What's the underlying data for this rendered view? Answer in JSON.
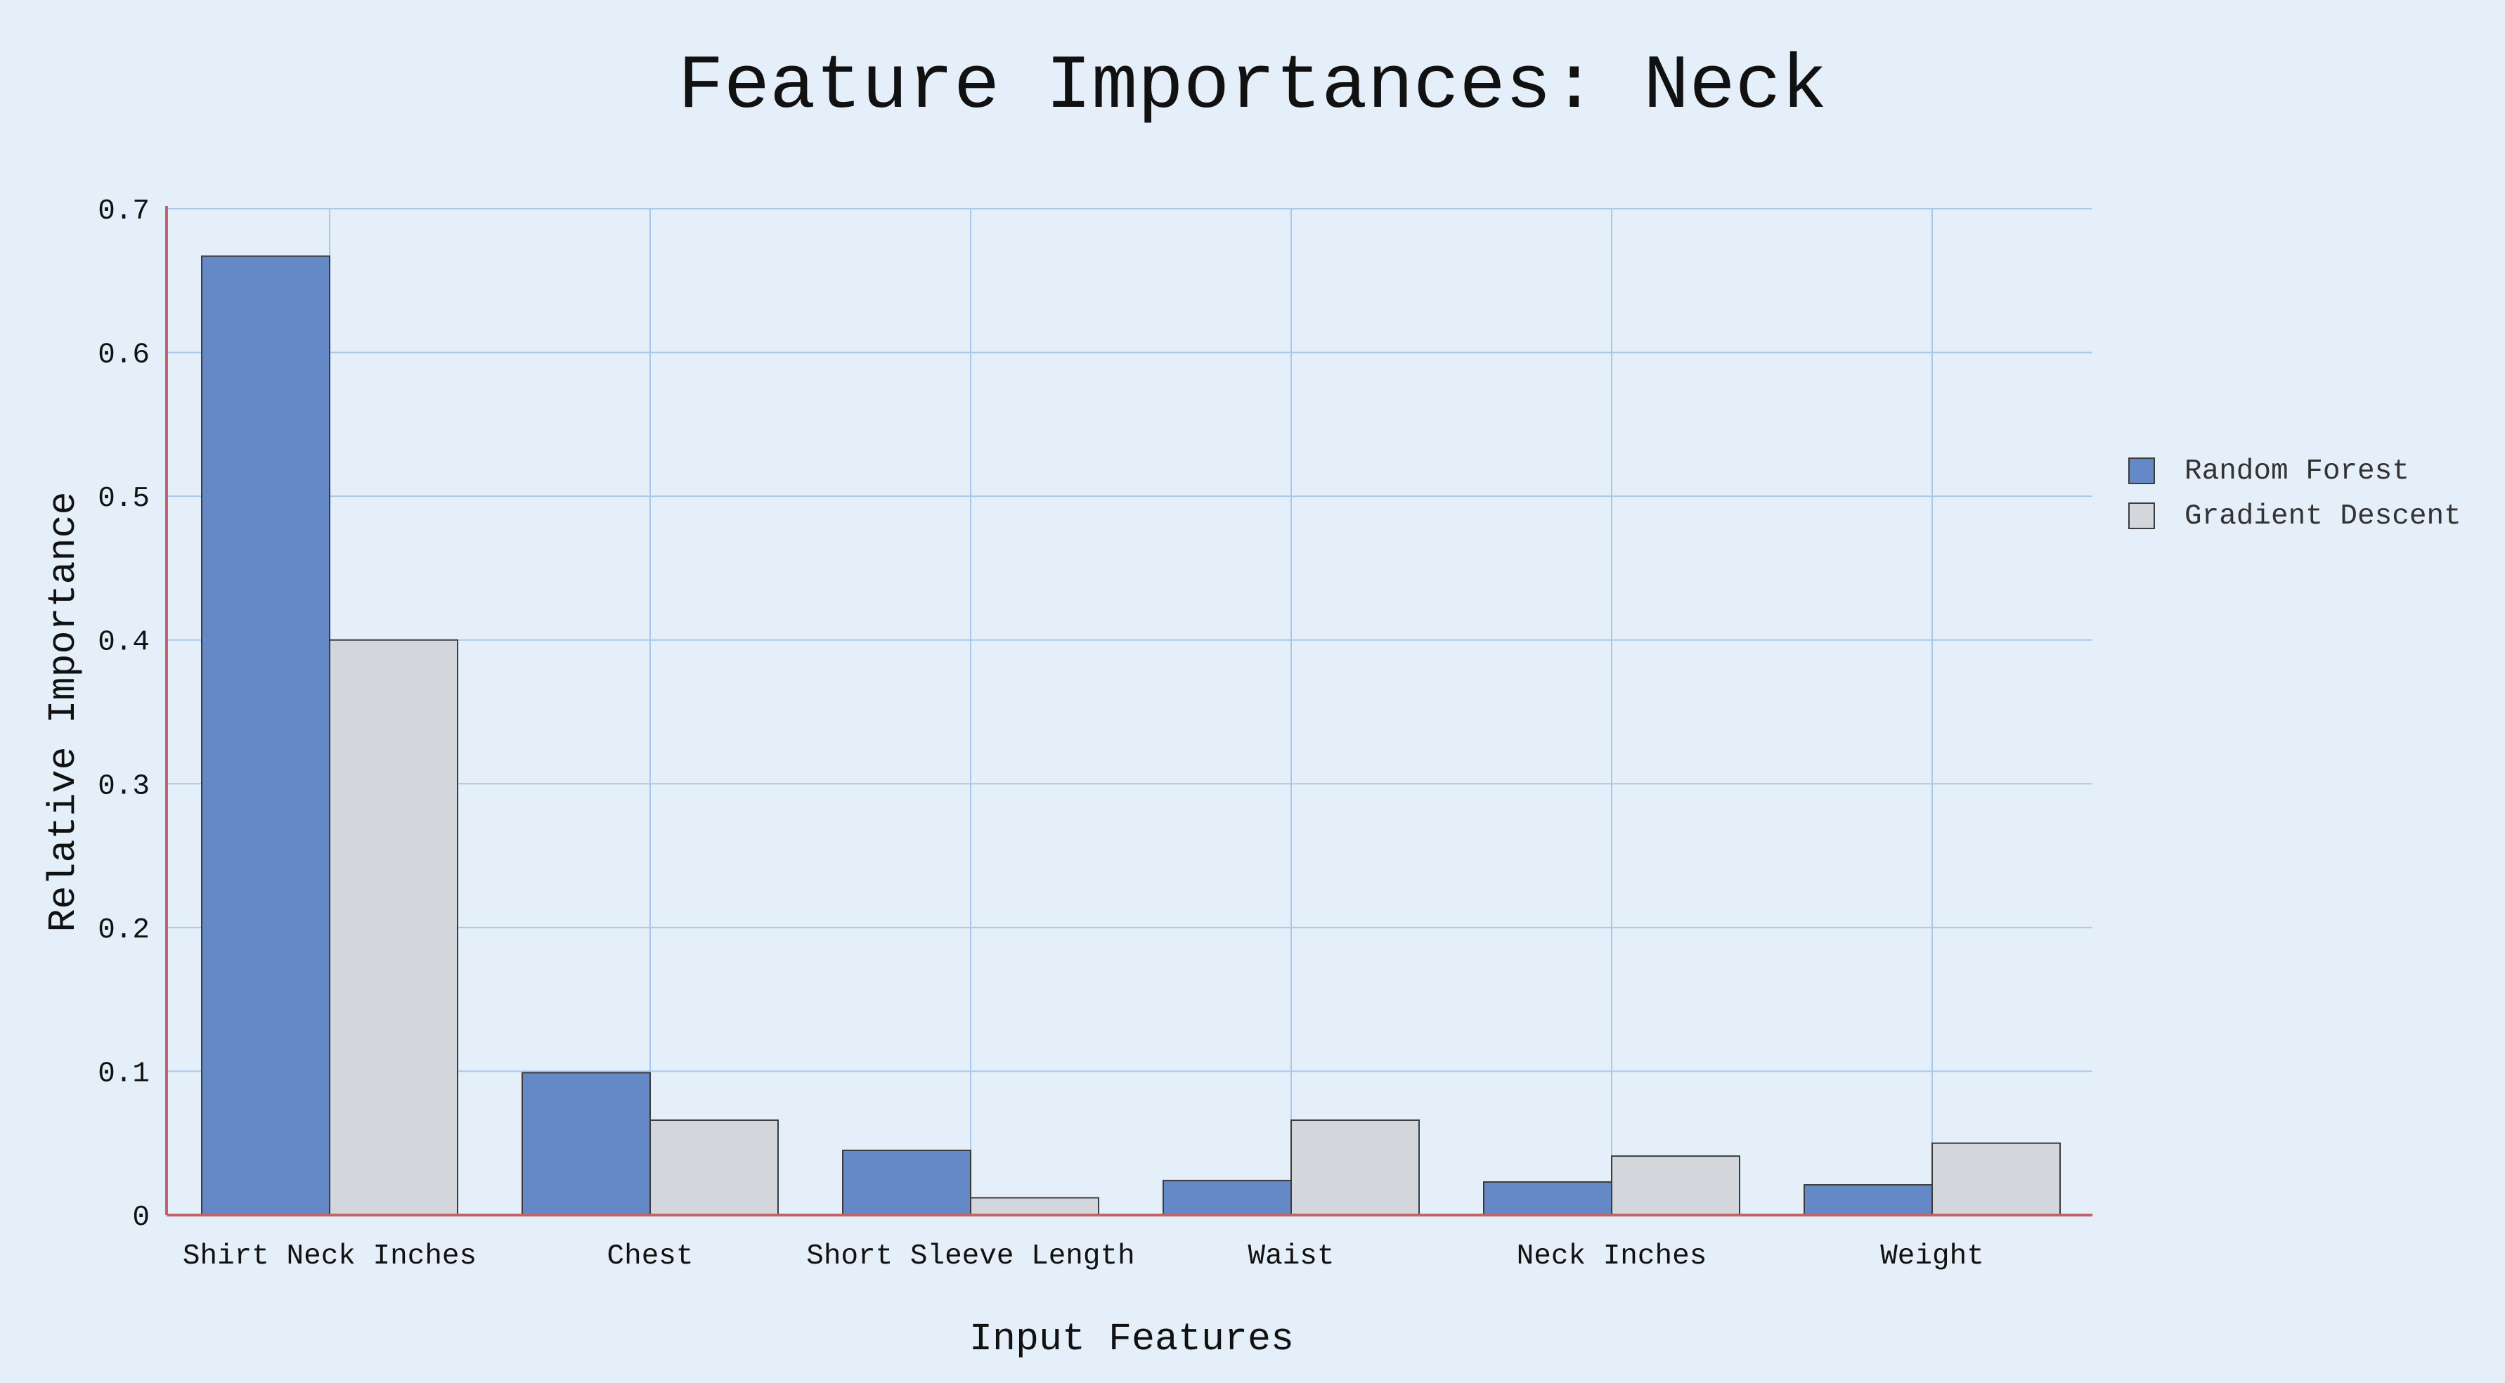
{
  "chart_data": {
    "type": "bar",
    "title": "Feature Importances: Neck",
    "xlabel": "Input Features",
    "ylabel": "Relative Importance",
    "categories": [
      "Shirt Neck Inches",
      "Chest",
      "Short Sleeve Length",
      "Waist",
      "Neck Inches",
      "Weight"
    ],
    "series": [
      {
        "name": "Random Forest",
        "values": [
          0.667,
          0.099,
          0.045,
          0.024,
          0.023,
          0.021
        ],
        "color": "#6589c6"
      },
      {
        "name": "Gradient Descent",
        "values": [
          0.4,
          0.066,
          0.012,
          0.066,
          0.041,
          0.05
        ],
        "color": "#d3d6da"
      }
    ],
    "ylim": [
      0,
      0.7
    ],
    "yticks": [
      0,
      0.1,
      0.2,
      0.3,
      0.4,
      0.5,
      0.6,
      0.7
    ],
    "ytick_labels": [
      "0",
      "0.1",
      "0.2",
      "0.3",
      "0.4",
      "0.5",
      "0.6",
      "0.7"
    ],
    "grid": true,
    "legend_position": "right",
    "colors": {
      "background": "#e5eff9",
      "grid": "#a9c8ea",
      "axis": "#c0646a",
      "bar_edge": "#3c3c3c"
    }
  }
}
